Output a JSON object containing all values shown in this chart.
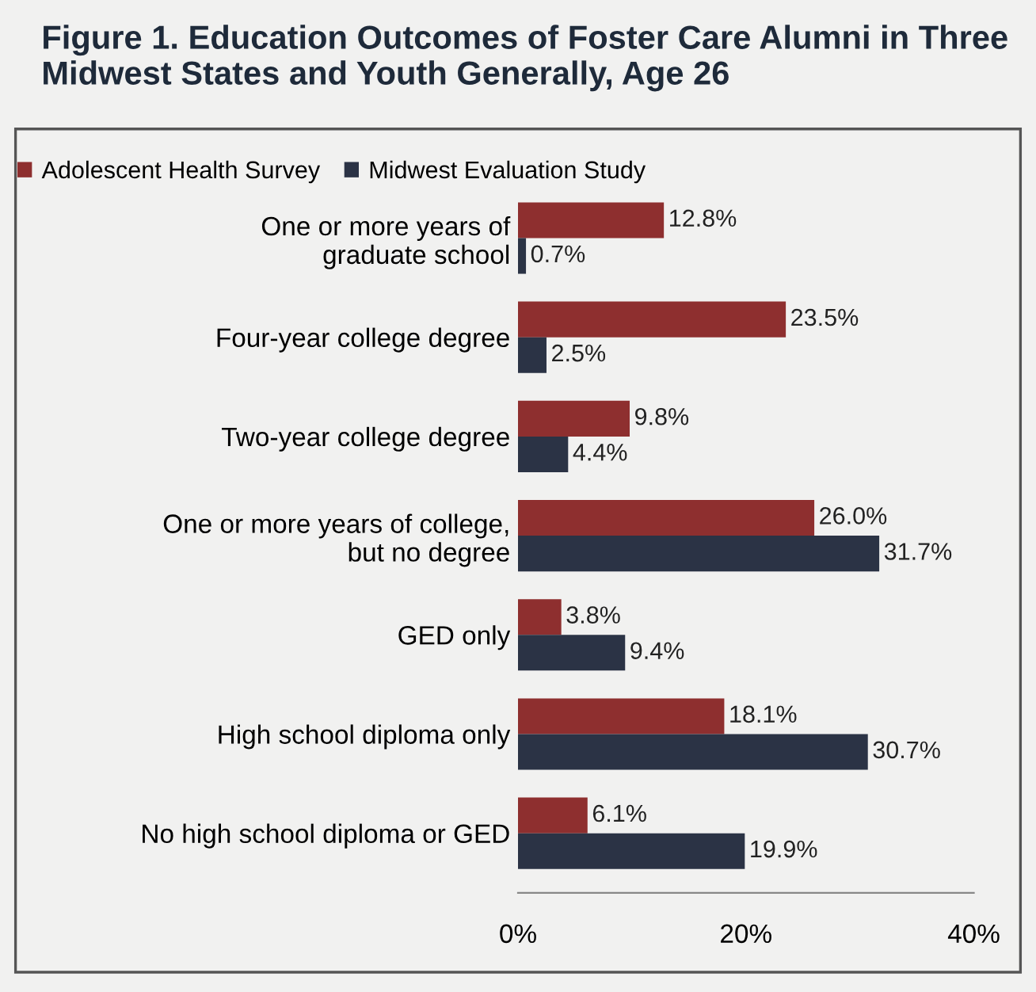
{
  "chart_data": {
    "type": "bar",
    "orientation": "horizontal",
    "title": "Figure 1. Education Outcomes of Foster Care Alumni in Three Midwest States and Youth Generally, Age 26",
    "categories": [
      "One or more years of\ngraduate school",
      "Four-year college degree",
      "Two-year college degree",
      "One or more years of college,\nbut no degree",
      "GED only",
      "High school diploma only",
      "No high school diploma or GED"
    ],
    "series": [
      {
        "name": "Adolescent Health Survey",
        "color": "#8e2f2f",
        "values": [
          12.8,
          23.5,
          9.8,
          26.0,
          3.8,
          18.1,
          6.1
        ],
        "value_labels": [
          "12.8%",
          "23.5%",
          "9.8%",
          "26.0%",
          "3.8%",
          "18.1%",
          "6.1%"
        ]
      },
      {
        "name": "Midwest Evaluation Study",
        "color": "#2b3345",
        "values": [
          0.7,
          2.5,
          4.4,
          31.7,
          9.4,
          30.7,
          19.9
        ],
        "value_labels": [
          "0.7%",
          "2.5%",
          "4.4%",
          "31.7%",
          "9.4%",
          "30.7%",
          "19.9%"
        ]
      }
    ],
    "xlim": [
      0,
      40
    ],
    "xticks": [
      {
        "value": 0,
        "label": "0%"
      },
      {
        "value": 20,
        "label": "20%"
      },
      {
        "value": 40,
        "label": "40%"
      }
    ],
    "legend": "top",
    "grid": false
  }
}
